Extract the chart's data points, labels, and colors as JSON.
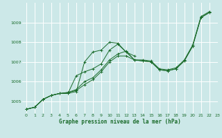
{
  "title": "Graphe pression niveau de la mer (hPa)",
  "bg_color": "#cce8e8",
  "grid_color": "#ffffff",
  "line_color": "#1a6b2a",
  "xlim": [
    -0.5,
    23
  ],
  "ylim": [
    1004.4,
    1010.0
  ],
  "yticks": [
    1005,
    1006,
    1007,
    1008,
    1009
  ],
  "xticks": [
    0,
    1,
    2,
    3,
    4,
    5,
    6,
    7,
    8,
    9,
    10,
    11,
    12,
    13,
    14,
    15,
    16,
    17,
    18,
    19,
    20,
    21,
    22,
    23
  ],
  "series": [
    [
      1004.6,
      1004.7,
      1005.1,
      1005.3,
      1005.4,
      1005.4,
      1005.5,
      1007.0,
      1007.5,
      1007.6,
      1008.0,
      1007.95,
      1007.5,
      1007.1,
      1007.1,
      1007.05,
      1006.65,
      1006.6,
      1006.7,
      1007.1,
      1007.85,
      1009.3,
      1009.55,
      null
    ],
    [
      1004.6,
      1004.7,
      1005.1,
      1005.3,
      1005.4,
      1005.4,
      1006.3,
      1006.5,
      1006.65,
      1006.9,
      1007.6,
      1007.9,
      1007.5,
      1007.3,
      null,
      null,
      null,
      null,
      null,
      null,
      null,
      null,
      null,
      null
    ],
    [
      1004.6,
      1004.7,
      1005.1,
      1005.3,
      1005.4,
      1005.45,
      1005.55,
      1005.85,
      1006.1,
      1006.5,
      1007.0,
      1007.3,
      1007.3,
      1007.1,
      1007.05,
      1007.0,
      1006.6,
      1006.55,
      1006.65,
      1007.05,
      1007.8,
      1009.25,
      1009.5,
      null
    ],
    [
      1004.6,
      1004.7,
      1005.1,
      1005.3,
      1005.4,
      1005.45,
      1005.6,
      1006.0,
      1006.2,
      1006.6,
      1007.1,
      1007.4,
      1007.55,
      1007.1,
      1007.05,
      1007.0,
      1006.6,
      1006.55,
      1006.65,
      1007.05,
      1007.8,
      1009.25,
      1009.5,
      null
    ]
  ]
}
